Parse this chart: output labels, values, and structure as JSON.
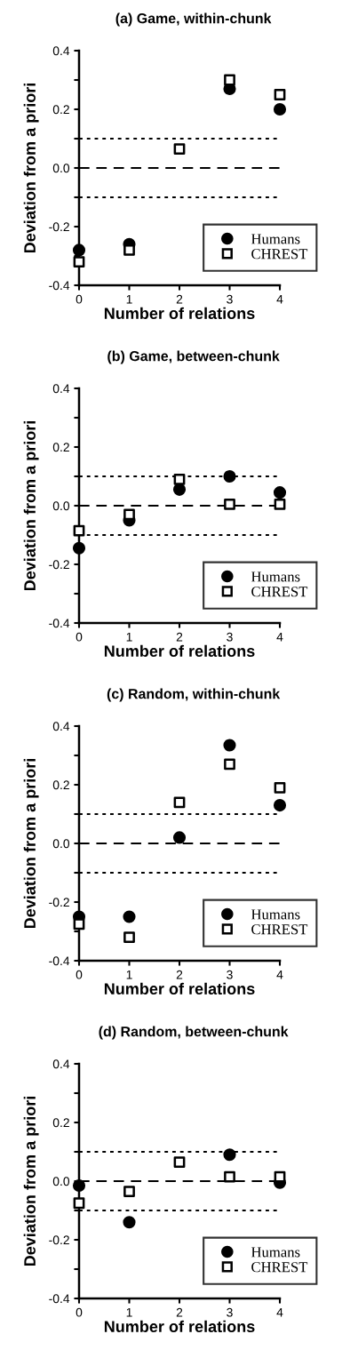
{
  "chart_data": [
    {
      "type": "scatter",
      "title": "(a) Game, within-chunk",
      "xlabel": "Number of relations",
      "ylabel": "Deviation from a priori",
      "x": [
        0,
        1,
        2,
        3,
        4
      ],
      "xlim": [
        0,
        4
      ],
      "xticks": [
        0,
        1,
        2,
        3,
        4
      ],
      "ylim": [
        -0.4,
        0.4
      ],
      "yticks": [
        -0.4,
        {
          "value": -0.3,
          "label": null
        },
        -0.2,
        {
          "value": -0.1,
          "label": null
        },
        {
          "value": 0,
          "label": "0.0"
        },
        {
          "value": 0.1,
          "label": null
        },
        0.2,
        {
          "value": 0.3,
          "label": null
        },
        0.4
      ],
      "grid": false,
      "legend": "bottom right",
      "ref_lines": [
        {
          "axis": "y",
          "value": 0.1,
          "line_style": "dotted",
          "color": "#000000"
        },
        {
          "axis": "y",
          "value": 0,
          "line_style": "dashed",
          "color": "#000000"
        },
        {
          "axis": "y",
          "value": -0.1,
          "line_style": "dotted",
          "color": "#000000"
        }
      ],
      "series": [
        {
          "name": "Humans",
          "color": "#000000",
          "marker": "circle",
          "values": [
            -0.28,
            -0.26,
            null,
            0.27,
            0.2
          ]
        },
        {
          "name": "CHREST",
          "color": "#000000",
          "marker": "square",
          "values": [
            -0.32,
            -0.28,
            0.065,
            0.3,
            0.25
          ]
        }
      ]
    },
    {
      "type": "scatter",
      "title": "(b) Game, between-chunk",
      "xlabel": "Number of relations",
      "ylabel": "Deviation from a priori",
      "x": [
        0,
        1,
        2,
        3,
        4
      ],
      "xlim": [
        0,
        4
      ],
      "xticks": [
        0,
        1,
        2,
        3,
        4
      ],
      "ylim": [
        -0.4,
        0.4
      ],
      "yticks": [
        -0.4,
        {
          "value": -0.3,
          "label": null
        },
        -0.2,
        {
          "value": -0.1,
          "label": null
        },
        {
          "value": 0,
          "label": "0.0"
        },
        {
          "value": 0.1,
          "label": null
        },
        0.2,
        {
          "value": 0.3,
          "label": null
        },
        0.4
      ],
      "grid": false,
      "legend": "bottom right",
      "ref_lines": [
        {
          "axis": "y",
          "value": 0.1,
          "line_style": "dotted",
          "color": "#000000"
        },
        {
          "axis": "y",
          "value": 0,
          "line_style": "dashed",
          "color": "#000000"
        },
        {
          "axis": "y",
          "value": -0.1,
          "line_style": "dotted",
          "color": "#000000"
        }
      ],
      "series": [
        {
          "name": "Humans",
          "color": "#000000",
          "marker": "circle",
          "values": [
            -0.145,
            -0.05,
            0.055,
            0.1,
            0.045
          ]
        },
        {
          "name": "CHREST",
          "color": "#000000",
          "marker": "square",
          "values": [
            -0.085,
            -0.03,
            0.09,
            0.005,
            0.005
          ]
        }
      ]
    },
    {
      "type": "scatter",
      "title": "(c) Random, within-chunk",
      "xlabel": "Number of relations",
      "ylabel": "Deviation from a priori",
      "x": [
        0,
        1,
        2,
        3,
        4
      ],
      "xlim": [
        0,
        4
      ],
      "xticks": [
        0,
        1,
        2,
        3,
        4
      ],
      "ylim": [
        -0.4,
        0.4
      ],
      "yticks": [
        -0.4,
        {
          "value": -0.3,
          "label": null
        },
        -0.2,
        {
          "value": -0.1,
          "label": null
        },
        {
          "value": 0,
          "label": "0.0"
        },
        {
          "value": 0.1,
          "label": null
        },
        0.2,
        {
          "value": 0.3,
          "label": null
        },
        0.4
      ],
      "grid": false,
      "legend": "bottom right",
      "ref_lines": [
        {
          "axis": "y",
          "value": 0.1,
          "line_style": "dotted",
          "color": "#000000"
        },
        {
          "axis": "y",
          "value": 0,
          "line_style": "dashed",
          "color": "#000000"
        },
        {
          "axis": "y",
          "value": -0.1,
          "line_style": "dotted",
          "color": "#000000"
        }
      ],
      "series": [
        {
          "name": "Humans",
          "color": "#000000",
          "marker": "circle",
          "values": [
            -0.25,
            -0.25,
            0.02,
            0.335,
            0.13
          ]
        },
        {
          "name": "CHREST",
          "color": "#000000",
          "marker": "square",
          "values": [
            -0.275,
            -0.32,
            0.14,
            0.27,
            0.19
          ]
        }
      ]
    },
    {
      "type": "scatter",
      "title": "(d) Random, between-chunk",
      "xlabel": "Number of relations",
      "ylabel": "Deviation from a priori",
      "x": [
        0,
        1,
        2,
        3,
        4
      ],
      "xlim": [
        0,
        4
      ],
      "xticks": [
        0,
        1,
        2,
        3,
        4
      ],
      "ylim": [
        -0.4,
        0.4
      ],
      "yticks": [
        -0.4,
        {
          "value": -0.3,
          "label": null
        },
        -0.2,
        {
          "value": -0.1,
          "label": null
        },
        {
          "value": 0,
          "label": "0.0"
        },
        {
          "value": 0.1,
          "label": null
        },
        0.2,
        {
          "value": 0.3,
          "label": null
        },
        0.4
      ],
      "grid": false,
      "legend": "bottom right",
      "ref_lines": [
        {
          "axis": "y",
          "value": 0.1,
          "line_style": "dotted",
          "color": "#000000"
        },
        {
          "axis": "y",
          "value": 0,
          "line_style": "dashed",
          "color": "#000000"
        },
        {
          "axis": "y",
          "value": -0.1,
          "line_style": "dotted",
          "color": "#000000"
        }
      ],
      "series": [
        {
          "name": "Humans",
          "color": "#000000",
          "marker": "circle",
          "values": [
            -0.015,
            -0.14,
            null,
            0.09,
            -0.005
          ]
        },
        {
          "name": "CHREST",
          "color": "#000000",
          "marker": "square",
          "values": [
            -0.075,
            -0.035,
            0.065,
            0.015,
            0.015
          ]
        }
      ]
    }
  ]
}
